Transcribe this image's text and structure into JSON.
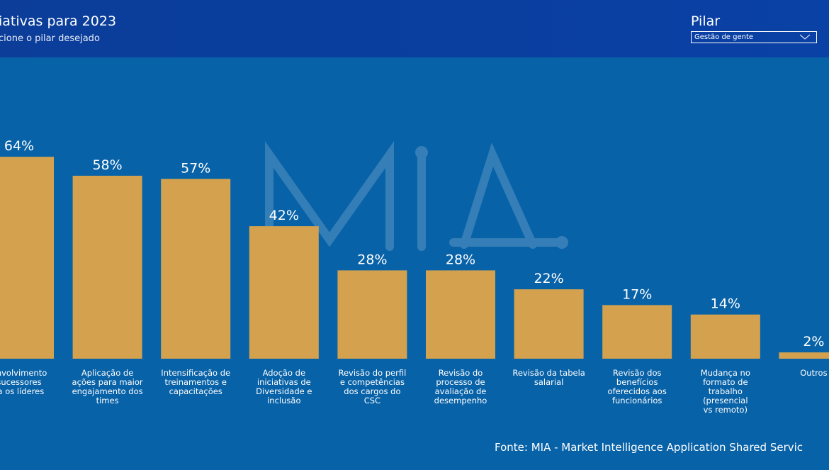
{
  "header": {
    "title": "iativas para 2023",
    "subtitle": "cione o pilar desejado"
  },
  "filter": {
    "label": "Pilar",
    "selected": "Gestão de gente",
    "chevron_icon": "chevron-down-icon"
  },
  "watermark": {
    "text": "MIA"
  },
  "chart_data": {
    "type": "bar",
    "categories": [
      [
        "envolvimento",
        "sucessores",
        "ra os líderes"
      ],
      [
        "Aplicação de",
        "ações para maior",
        "engajamento dos",
        "times"
      ],
      [
        "Intensificação de",
        "treinamentos e",
        "capacitações"
      ],
      [
        "Adoção de",
        "iniciativas de",
        "Diversidade e",
        "inclusão"
      ],
      [
        "Revisão do perfil",
        "e competências",
        "dos cargos do",
        "CSC"
      ],
      [
        "Revisão do",
        "processo de",
        "avaliação de",
        "desempenho"
      ],
      [
        "Revisão da tabela",
        "salarial"
      ],
      [
        "Revisão dos",
        "benefícios",
        "oferecidos aos",
        "funcionários"
      ],
      [
        "Mudança no",
        "formato de",
        "trabalho",
        "(presencial",
        "vs remoto)"
      ],
      [
        "Outros"
      ]
    ],
    "values": [
      64,
      58,
      57,
      42,
      28,
      28,
      22,
      17,
      14,
      2
    ],
    "data_labels": [
      "64%",
      "58%",
      "57%",
      "42%",
      "28%",
      "28%",
      "22%",
      "17%",
      "14%",
      "2%"
    ],
    "bar_color": "#d4a24f",
    "ylim": [
      0,
      100
    ],
    "grid": false,
    "legend": "none"
  },
  "footer": {
    "source": "Fonte: MIA - Market Intelligence Application Shared Servic"
  }
}
